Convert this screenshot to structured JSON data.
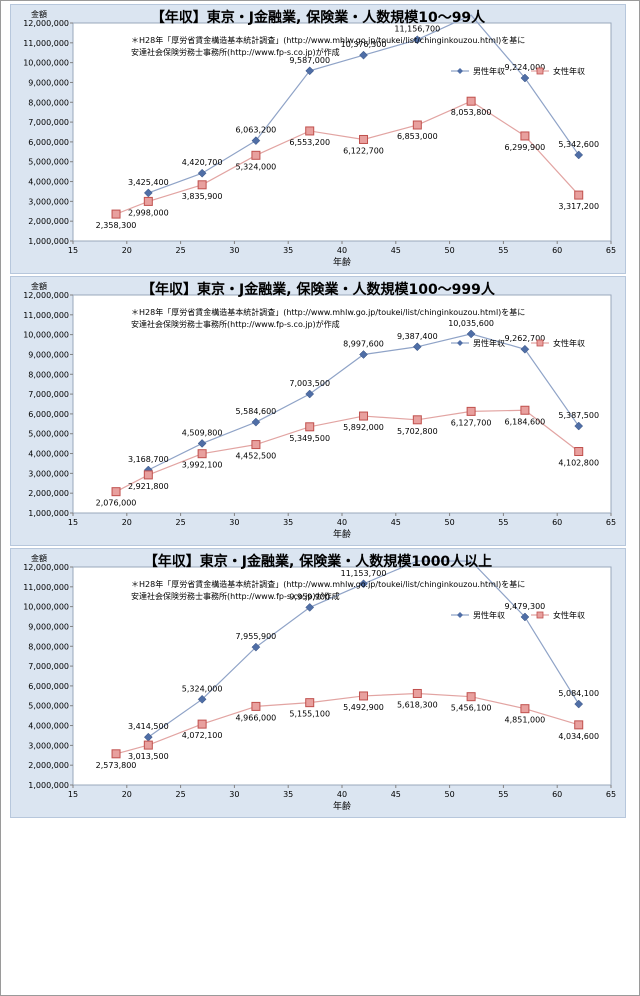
{
  "source_note": {
    "line1": "＊H28年「厚労省賃金構造基本統計調査」(http://www.mhlw.go.jp/toukei/list/chinginkouzou.html)を基に",
    "line2": "安達社会保険労務士事務所(http://www.fp-s.co.jp)が作成"
  },
  "chart_data": [
    {
      "type": "line",
      "title": "【年収】東京・J金融業, 保険業・人数規模10～99人",
      "xlabel": "年齢",
      "ylabel": "金額",
      "xlim": [
        15,
        65
      ],
      "ylim": [
        1000000,
        12000000
      ],
      "x_ticks": [
        "15",
        "20",
        "25",
        "30",
        "35",
        "40",
        "45",
        "50",
        "55",
        "60",
        "65"
      ],
      "y_ticks": [
        "1,000,000",
        "2,000,000",
        "3,000,000",
        "4,000,000",
        "5,000,000",
        "6,000,000",
        "7,000,000",
        "8,000,000",
        "9,000,000",
        "10,000,000",
        "11,000,000",
        "12,000,000"
      ],
      "legend": "top-right",
      "series": [
        {
          "name": "男性年収",
          "color": "#4f6ea6",
          "marker": "diamond",
          "x": [
            22,
            27,
            32,
            37,
            42,
            47,
            52,
            57,
            62
          ],
          "values": [
            3425400,
            4420700,
            6063200,
            9587000,
            10376300,
            11156700,
            12800000,
            9224000,
            5342600
          ],
          "labels": [
            "3,425,400",
            "4,420,700",
            "6,063,200",
            "9,587,000",
            "10,376,300",
            "11,156,700",
            "",
            "9,224,000",
            "5,342,600"
          ]
        },
        {
          "name": "女性年収",
          "color": "#c0504d",
          "marker": "square",
          "x": [
            19,
            22,
            27,
            32,
            37,
            42,
            47,
            52,
            57,
            62
          ],
          "values": [
            2358300,
            2998000,
            3835900,
            5324000,
            6553200,
            6122700,
            6853000,
            8053800,
            6299900,
            3317200
          ],
          "labels": [
            "2,358,300",
            "2,998,000",
            "3,835,900",
            "5,324,000",
            "6,553,200",
            "6,122,700",
            "6,853,000",
            "8,053,800",
            "6,299,900",
            "3,317,200"
          ]
        }
      ]
    },
    {
      "type": "line",
      "title": "【年収】東京・J金融業, 保険業・人数規模100～999人",
      "xlabel": "年齢",
      "ylabel": "金額",
      "xlim": [
        15,
        65
      ],
      "ylim": [
        1000000,
        12000000
      ],
      "x_ticks": [
        "15",
        "20",
        "25",
        "30",
        "35",
        "40",
        "45",
        "50",
        "55",
        "60",
        "65"
      ],
      "y_ticks": [
        "1,000,000",
        "2,000,000",
        "3,000,000",
        "4,000,000",
        "5,000,000",
        "6,000,000",
        "7,000,000",
        "8,000,000",
        "9,000,000",
        "10,000,000",
        "11,000,000",
        "12,000,000"
      ],
      "legend": "top-right",
      "series": [
        {
          "name": "男性年収",
          "color": "#4f6ea6",
          "marker": "diamond",
          "x": [
            22,
            27,
            32,
            37,
            42,
            47,
            52,
            57,
            62
          ],
          "values": [
            3168700,
            4509800,
            5584600,
            7003500,
            8997600,
            9387400,
            10035600,
            9262700,
            5387500
          ],
          "labels": [
            "3,168,700",
            "4,509,800",
            "5,584,600",
            "7,003,500",
            "8,997,600",
            "9,387,400",
            "10,035,600",
            "9,262,700",
            "5,387,500"
          ]
        },
        {
          "name": "女性年収",
          "color": "#c0504d",
          "marker": "square",
          "x": [
            19,
            22,
            27,
            32,
            37,
            42,
            47,
            52,
            57,
            62
          ],
          "values": [
            2076000,
            2921800,
            3992100,
            4452500,
            5349500,
            5892000,
            5702800,
            6127700,
            6184600,
            4102800
          ],
          "labels": [
            "2,076,000",
            "2,921,800",
            "3,992,100",
            "4,452,500",
            "5,349,500",
            "5,892,000",
            "5,702,800",
            "6,127,700",
            "6,184,600",
            "4,102,800"
          ]
        }
      ]
    },
    {
      "type": "line",
      "title": "【年収】東京・J金融業, 保険業・人数規模1000人以上",
      "xlabel": "年齢",
      "ylabel": "金額",
      "xlim": [
        15,
        65
      ],
      "ylim": [
        1000000,
        12000000
      ],
      "x_ticks": [
        "15",
        "20",
        "25",
        "30",
        "35",
        "40",
        "45",
        "50",
        "55",
        "60",
        "65"
      ],
      "y_ticks": [
        "1,000,000",
        "2,000,000",
        "3,000,000",
        "4,000,000",
        "5,000,000",
        "6,000,000",
        "7,000,000",
        "8,000,000",
        "9,000,000",
        "10,000,000",
        "11,000,000",
        "12,000,000"
      ],
      "legend": "top-right",
      "series": [
        {
          "name": "男性年収",
          "color": "#4f6ea6",
          "marker": "diamond",
          "x": [
            22,
            27,
            32,
            37,
            42,
            47,
            52,
            57,
            62
          ],
          "values": [
            3414500,
            5324000,
            7955900,
            9959900,
            11153700,
            12300000,
            12300000,
            9479300,
            5084100
          ],
          "labels": [
            "3,414,500",
            "5,324,000",
            "7,955,900",
            "9,959,900",
            "11,153,700",
            "",
            "",
            "9,479,300",
            "5,084,100"
          ]
        },
        {
          "name": "女性年収",
          "color": "#c0504d",
          "marker": "square",
          "x": [
            19,
            22,
            27,
            32,
            37,
            42,
            47,
            52,
            57,
            62
          ],
          "values": [
            2573800,
            3013500,
            4072100,
            4966000,
            5155100,
            5492900,
            5618300,
            5456100,
            4851000,
            4034600
          ],
          "labels": [
            "2,573,800",
            "3,013,500",
            "4,072,100",
            "4,966,000",
            "5,155,100",
            "5,492,900",
            "5,618,300",
            "5,456,100",
            "4,851,000",
            "4,034,600"
          ]
        }
      ]
    }
  ]
}
